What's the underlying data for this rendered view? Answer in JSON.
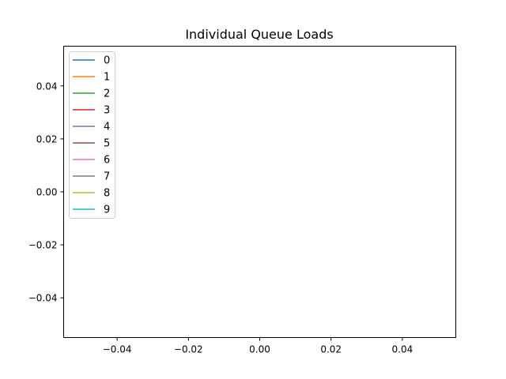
{
  "chart_data": {
    "type": "line",
    "title": "Individual Queue Loads",
    "xlabel": "",
    "ylabel": "",
    "xlim": [
      -0.055,
      0.055
    ],
    "ylim": [
      -0.055,
      0.055
    ],
    "xticks": [
      -0.04,
      -0.02,
      0.0,
      0.02,
      0.04
    ],
    "yticks": [
      -0.04,
      -0.02,
      0.0,
      0.02,
      0.04
    ],
    "xtick_labels": [
      "−0.04",
      "−0.02",
      "0.00",
      "0.02",
      "0.04"
    ],
    "ytick_labels": [
      "−0.04",
      "−0.02",
      "0.00",
      "0.02",
      "0.04"
    ],
    "grid": false,
    "legend_position": "upper left",
    "series": [
      {
        "name": "0",
        "color": "#1f77b4",
        "x": [],
        "y": []
      },
      {
        "name": "1",
        "color": "#ff7f0e",
        "x": [],
        "y": []
      },
      {
        "name": "2",
        "color": "#2ca02c",
        "x": [],
        "y": []
      },
      {
        "name": "3",
        "color": "#d62728",
        "x": [],
        "y": []
      },
      {
        "name": "4",
        "color": "#9467bd",
        "x": [],
        "y": []
      },
      {
        "name": "5",
        "color": "#8c564b",
        "x": [],
        "y": []
      },
      {
        "name": "6",
        "color": "#e377c2",
        "x": [],
        "y": []
      },
      {
        "name": "7",
        "color": "#7f7f7f",
        "x": [],
        "y": []
      },
      {
        "name": "8",
        "color": "#bcbd22",
        "x": [],
        "y": []
      },
      {
        "name": "9",
        "color": "#17becf",
        "x": [],
        "y": []
      }
    ]
  }
}
